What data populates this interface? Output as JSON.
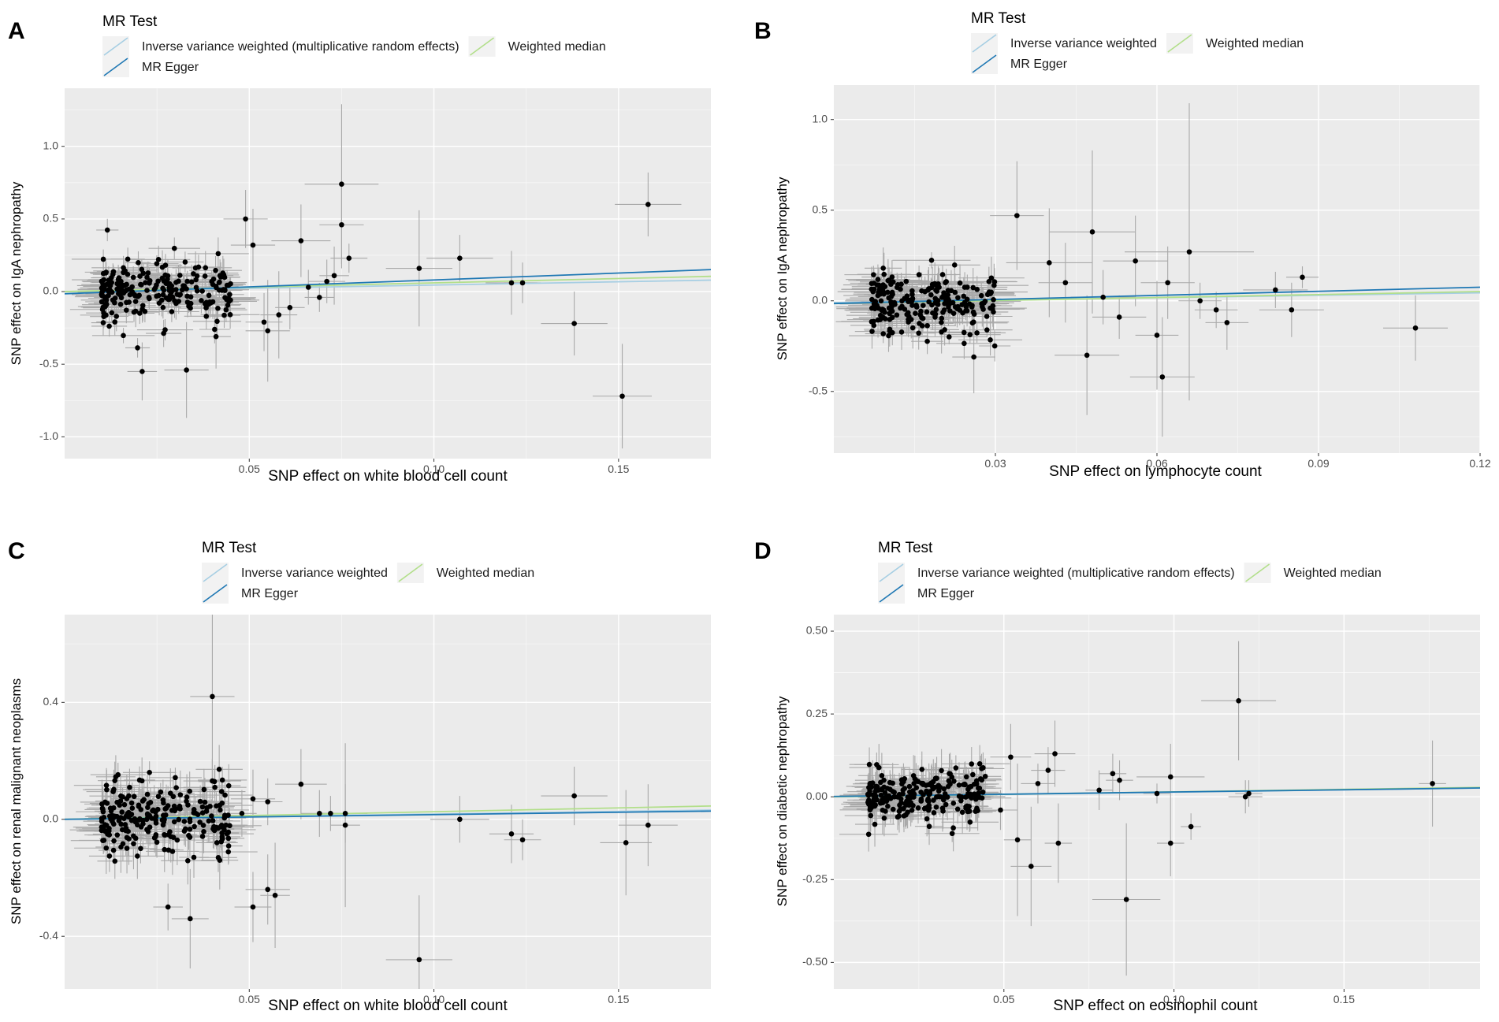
{
  "figure": {
    "legend_title": "MR Test",
    "colors": {
      "ivw": "#a6cee3",
      "egger": "#1f78b4",
      "median": "#b2df8a",
      "panel_bg": "#ebebeb",
      "grid": "#ffffff",
      "point": "#000000",
      "errorbar": "#a9a9a9"
    }
  },
  "chart_data": [
    {
      "panel": "A",
      "type": "scatter",
      "xlabel": "SNP effect on white blood cell count",
      "ylabel": "SNP effect on IgA nephropathy",
      "xlim": [
        0.0,
        0.175
      ],
      "ylim": [
        -1.15,
        1.4
      ],
      "xticks": [
        0.05,
        0.1,
        0.15
      ],
      "xtick_labels": [
        "0.05",
        "0.10",
        "0.15"
      ],
      "yticks": [
        -1.0,
        -0.5,
        0.0,
        0.5,
        1.0
      ],
      "ytick_labels": [
        "-1.0",
        "-0.5",
        "0.0",
        "0.5",
        "1.0"
      ],
      "legend": [
        {
          "key": "ivw",
          "label": "Inverse variance weighted (multiplicative random effects)"
        },
        {
          "key": "median",
          "label": "Weighted median"
        },
        {
          "key": "egger",
          "label": "MR Egger"
        }
      ],
      "lines": [
        {
          "key": "ivw",
          "slope": 0.45,
          "intercept": 0.0
        },
        {
          "key": "median",
          "slope": 0.6,
          "intercept": 0.0
        },
        {
          "key": "egger",
          "slope": 0.95,
          "intercept": -0.015
        }
      ],
      "cluster": {
        "xmin": 0.01,
        "xmax": 0.045,
        "center_slope": 0.4,
        "spread": 0.1,
        "count": 240,
        "ex": 0.006,
        "ey": 0.08
      },
      "points": [
        {
          "x": 0.158,
          "y": 0.6,
          "ex": 0.009,
          "ey": 0.22
        },
        {
          "x": 0.075,
          "y": 0.74,
          "ex": 0.01,
          "ey": 0.55
        },
        {
          "x": 0.075,
          "y": 0.46,
          "ex": 0.006,
          "ey": 0.3
        },
        {
          "x": 0.077,
          "y": 0.23,
          "ex": 0.005,
          "ey": 0.1
        },
        {
          "x": 0.049,
          "y": 0.5,
          "ex": 0.006,
          "ey": 0.2
        },
        {
          "x": 0.051,
          "y": 0.32,
          "ex": 0.006,
          "ey": 0.25
        },
        {
          "x": 0.064,
          "y": 0.35,
          "ex": 0.008,
          "ey": 0.25
        },
        {
          "x": 0.096,
          "y": 0.16,
          "ex": 0.009,
          "ey": 0.4
        },
        {
          "x": 0.107,
          "y": 0.23,
          "ex": 0.009,
          "ey": 0.16
        },
        {
          "x": 0.121,
          "y": 0.06,
          "ex": 0.007,
          "ey": 0.22
        },
        {
          "x": 0.124,
          "y": 0.06,
          "ex": 0.005,
          "ey": 0.14
        },
        {
          "x": 0.138,
          "y": -0.22,
          "ex": 0.009,
          "ey": 0.22
        },
        {
          "x": 0.151,
          "y": -0.72,
          "ex": 0.008,
          "ey": 0.36
        },
        {
          "x": 0.021,
          "y": -0.55,
          "ex": 0.004,
          "ey": 0.2
        },
        {
          "x": 0.033,
          "y": -0.54,
          "ex": 0.006,
          "ey": 0.33
        },
        {
          "x": 0.041,
          "y": -0.31,
          "ex": 0.004,
          "ey": 0.22
        },
        {
          "x": 0.055,
          "y": -0.27,
          "ex": 0.006,
          "ey": 0.35
        },
        {
          "x": 0.054,
          "y": -0.21,
          "ex": 0.005,
          "ey": 0.2
        },
        {
          "x": 0.058,
          "y": -0.16,
          "ex": 0.005,
          "ey": 0.3
        },
        {
          "x": 0.061,
          "y": -0.11,
          "ex": 0.004,
          "ey": 0.15
        },
        {
          "x": 0.071,
          "y": 0.07,
          "ex": 0.005,
          "ey": 0.15
        },
        {
          "x": 0.073,
          "y": 0.11,
          "ex": 0.004,
          "ey": 0.2
        },
        {
          "x": 0.069,
          "y": -0.04,
          "ex": 0.004,
          "ey": 0.1
        },
        {
          "x": 0.066,
          "y": 0.03,
          "ex": 0.004,
          "ey": 0.12
        }
      ]
    },
    {
      "panel": "B",
      "type": "scatter",
      "xlabel": "SNP effect on lymphocyte count",
      "ylabel": "SNP effect on IgA nephropathy",
      "xlim": [
        0.0,
        0.12
      ],
      "ylim": [
        -0.84,
        1.19
      ],
      "xticks": [
        0.03,
        0.06,
        0.09,
        0.12
      ],
      "xtick_labels": [
        "0.03",
        "0.06",
        "0.09",
        "0.12"
      ],
      "yticks": [
        -0.5,
        0.0,
        0.5,
        1.0
      ],
      "ytick_labels": [
        "-0.5",
        "0.0",
        "0.5",
        "1.0"
      ],
      "legend": [
        {
          "key": "ivw",
          "label": "Inverse variance weighted"
        },
        {
          "key": "median",
          "label": "Weighted median"
        },
        {
          "key": "egger",
          "label": "MR Egger"
        }
      ],
      "lines": [
        {
          "key": "ivw",
          "slope": 0.45,
          "intercept": -0.01
        },
        {
          "key": "median",
          "slope": 0.55,
          "intercept": -0.015
        },
        {
          "key": "egger",
          "slope": 0.75,
          "intercept": -0.015
        }
      ],
      "cluster": {
        "xmin": 0.007,
        "xmax": 0.03,
        "center_slope": 0.0,
        "spread": 0.09,
        "count": 230,
        "ex": 0.005,
        "ey": 0.08
      },
      "points": [
        {
          "x": 0.034,
          "y": 0.47,
          "ex": 0.005,
          "ey": 0.3
        },
        {
          "x": 0.048,
          "y": 0.38,
          "ex": 0.008,
          "ey": 0.45
        },
        {
          "x": 0.066,
          "y": 0.27,
          "ex": 0.012,
          "ey": 0.82
        },
        {
          "x": 0.087,
          "y": 0.13,
          "ex": 0.003,
          "ey": 0.06
        },
        {
          "x": 0.082,
          "y": 0.06,
          "ex": 0.006,
          "ey": 0.1
        },
        {
          "x": 0.085,
          "y": -0.05,
          "ex": 0.006,
          "ey": 0.15
        },
        {
          "x": 0.108,
          "y": -0.15,
          "ex": 0.006,
          "ey": 0.18
        },
        {
          "x": 0.073,
          "y": -0.12,
          "ex": 0.004,
          "ey": 0.15
        },
        {
          "x": 0.061,
          "y": -0.42,
          "ex": 0.006,
          "ey": 0.33
        },
        {
          "x": 0.06,
          "y": -0.19,
          "ex": 0.004,
          "ey": 0.3
        },
        {
          "x": 0.047,
          "y": -0.3,
          "ex": 0.006,
          "ey": 0.33
        },
        {
          "x": 0.026,
          "y": -0.31,
          "ex": 0.004,
          "ey": 0.2
        },
        {
          "x": 0.062,
          "y": 0.1,
          "ex": 0.005,
          "ey": 0.2
        },
        {
          "x": 0.056,
          "y": 0.22,
          "ex": 0.006,
          "ey": 0.25
        },
        {
          "x": 0.04,
          "y": 0.21,
          "ex": 0.008,
          "ey": 0.3
        },
        {
          "x": 0.043,
          "y": 0.1,
          "ex": 0.005,
          "ey": 0.22
        },
        {
          "x": 0.068,
          "y": 0.0,
          "ex": 0.004,
          "ey": 0.1
        },
        {
          "x": 0.071,
          "y": -0.05,
          "ex": 0.004,
          "ey": 0.1
        },
        {
          "x": 0.053,
          "y": -0.09,
          "ex": 0.005,
          "ey": 0.12
        },
        {
          "x": 0.05,
          "y": 0.02,
          "ex": 0.006,
          "ey": 0.15
        }
      ]
    },
    {
      "panel": "C",
      "type": "scatter",
      "xlabel": "SNP effect on white blood cell count",
      "ylabel": "SNP effect on renal malignant neoplasms",
      "xlim": [
        0.0,
        0.175
      ],
      "ylim": [
        -0.58,
        0.7
      ],
      "xticks": [
        0.05,
        0.1,
        0.15
      ],
      "xtick_labels": [
        "0.05",
        "0.10",
        "0.15"
      ],
      "yticks": [
        -0.4,
        0.0,
        0.4
      ],
      "ytick_labels": [
        "-0.4",
        "0.0",
        "0.4"
      ],
      "legend": [
        {
          "key": "ivw",
          "label": "Inverse variance weighted"
        },
        {
          "key": "median",
          "label": "Weighted median"
        },
        {
          "key": "egger",
          "label": "MR Egger"
        }
      ],
      "lines": [
        {
          "key": "ivw",
          "slope": 0.18,
          "intercept": 0.0
        },
        {
          "key": "median",
          "slope": 0.26,
          "intercept": 0.0
        },
        {
          "key": "egger",
          "slope": 0.16,
          "intercept": 0.0
        }
      ],
      "cluster": {
        "xmin": 0.01,
        "xmax": 0.045,
        "center_slope": 0.3,
        "spread": 0.06,
        "count": 240,
        "ex": 0.006,
        "ey": 0.06
      },
      "points": [
        {
          "x": 0.04,
          "y": 0.42,
          "ex": 0.006,
          "ey": 0.28
        },
        {
          "x": 0.064,
          "y": 0.12,
          "ex": 0.007,
          "ey": 0.12
        },
        {
          "x": 0.138,
          "y": 0.08,
          "ex": 0.009,
          "ey": 0.1
        },
        {
          "x": 0.107,
          "y": 0.0,
          "ex": 0.008,
          "ey": 0.08
        },
        {
          "x": 0.121,
          "y": -0.05,
          "ex": 0.006,
          "ey": 0.1
        },
        {
          "x": 0.124,
          "y": -0.07,
          "ex": 0.005,
          "ey": 0.07
        },
        {
          "x": 0.152,
          "y": -0.08,
          "ex": 0.007,
          "ey": 0.18
        },
        {
          "x": 0.158,
          "y": -0.02,
          "ex": 0.008,
          "ey": 0.14
        },
        {
          "x": 0.096,
          "y": -0.48,
          "ex": 0.009,
          "ey": 0.22
        },
        {
          "x": 0.028,
          "y": -0.3,
          "ex": 0.004,
          "ey": 0.08
        },
        {
          "x": 0.034,
          "y": -0.34,
          "ex": 0.005,
          "ey": 0.17
        },
        {
          "x": 0.051,
          "y": -0.3,
          "ex": 0.005,
          "ey": 0.12
        },
        {
          "x": 0.055,
          "y": -0.24,
          "ex": 0.006,
          "ey": 0.12
        },
        {
          "x": 0.057,
          "y": -0.26,
          "ex": 0.004,
          "ey": 0.18
        },
        {
          "x": 0.035,
          "y": -0.13,
          "ex": 0.004,
          "ey": 0.07
        },
        {
          "x": 0.042,
          "y": -0.14,
          "ex": 0.005,
          "ey": 0.1
        },
        {
          "x": 0.076,
          "y": -0.02,
          "ex": 0.004,
          "ey": 0.28
        },
        {
          "x": 0.076,
          "y": 0.02,
          "ex": 0.006,
          "ey": 0.1
        },
        {
          "x": 0.072,
          "y": 0.02,
          "ex": 0.004,
          "ey": 0.06
        },
        {
          "x": 0.069,
          "y": 0.02,
          "ex": 0.005,
          "ey": 0.08
        },
        {
          "x": 0.051,
          "y": 0.07,
          "ex": 0.006,
          "ey": 0.1
        },
        {
          "x": 0.055,
          "y": 0.06,
          "ex": 0.004,
          "ey": 0.08
        },
        {
          "x": 0.048,
          "y": 0.02,
          "ex": 0.004,
          "ey": 0.08
        }
      ]
    },
    {
      "panel": "D",
      "type": "scatter",
      "xlabel": "SNP effect on eosinophil count",
      "ylabel": "SNP effect on diabetic nephropathy",
      "xlim": [
        0.0,
        0.19
      ],
      "ylim": [
        -0.58,
        0.55
      ],
      "xticks": [
        0.05,
        0.1,
        0.15
      ],
      "xtick_labels": [
        "0.05",
        "0.10",
        "0.15"
      ],
      "yticks": [
        -0.5,
        -0.25,
        0.0,
        0.25,
        0.5
      ],
      "ytick_labels": [
        "-0.50",
        "-0.25",
        "0.00",
        "0.25",
        "0.50"
      ],
      "legend": [
        {
          "key": "ivw",
          "label": "Inverse variance weighted (multiplicative random effects)"
        },
        {
          "key": "median",
          "label": "Weighted median"
        },
        {
          "key": "egger",
          "label": "MR Egger"
        }
      ],
      "lines": [
        {
          "key": "ivw",
          "slope": 0.14,
          "intercept": 0.0
        },
        {
          "key": "median",
          "slope": 0.15,
          "intercept": 0.0
        },
        {
          "key": "egger",
          "slope": 0.135,
          "intercept": 0.001
        }
      ],
      "cluster": {
        "xmin": 0.01,
        "xmax": 0.045,
        "center_slope": 0.2,
        "spread": 0.04,
        "count": 240,
        "ex": 0.006,
        "ey": 0.05
      },
      "points": [
        {
          "x": 0.119,
          "y": 0.29,
          "ex": 0.011,
          "ey": 0.18
        },
        {
          "x": 0.176,
          "y": 0.04,
          "ex": 0.004,
          "ey": 0.13
        },
        {
          "x": 0.121,
          "y": 0.0,
          "ex": 0.005,
          "ey": 0.05
        },
        {
          "x": 0.122,
          "y": 0.01,
          "ex": 0.004,
          "ey": 0.04
        },
        {
          "x": 0.086,
          "y": -0.31,
          "ex": 0.01,
          "ey": 0.23
        },
        {
          "x": 0.099,
          "y": 0.06,
          "ex": 0.01,
          "ey": 0.1
        },
        {
          "x": 0.099,
          "y": -0.14,
          "ex": 0.004,
          "ey": 0.1
        },
        {
          "x": 0.105,
          "y": -0.09,
          "ex": 0.003,
          "ey": 0.04
        },
        {
          "x": 0.058,
          "y": -0.21,
          "ex": 0.006,
          "ey": 0.18
        },
        {
          "x": 0.054,
          "y": -0.13,
          "ex": 0.004,
          "ey": 0.23
        },
        {
          "x": 0.066,
          "y": -0.14,
          "ex": 0.004,
          "ey": 0.12
        },
        {
          "x": 0.082,
          "y": 0.07,
          "ex": 0.004,
          "ey": 0.06
        },
        {
          "x": 0.084,
          "y": 0.05,
          "ex": 0.004,
          "ey": 0.06
        },
        {
          "x": 0.078,
          "y": 0.02,
          "ex": 0.004,
          "ey": 0.06
        },
        {
          "x": 0.095,
          "y": 0.01,
          "ex": 0.004,
          "ey": 0.03
        },
        {
          "x": 0.065,
          "y": 0.13,
          "ex": 0.006,
          "ey": 0.1
        },
        {
          "x": 0.052,
          "y": 0.12,
          "ex": 0.006,
          "ey": 0.1
        },
        {
          "x": 0.063,
          "y": 0.08,
          "ex": 0.005,
          "ey": 0.07
        },
        {
          "x": 0.06,
          "y": 0.04,
          "ex": 0.005,
          "ey": 0.06
        },
        {
          "x": 0.049,
          "y": -0.04,
          "ex": 0.005,
          "ey": 0.06
        }
      ]
    }
  ]
}
